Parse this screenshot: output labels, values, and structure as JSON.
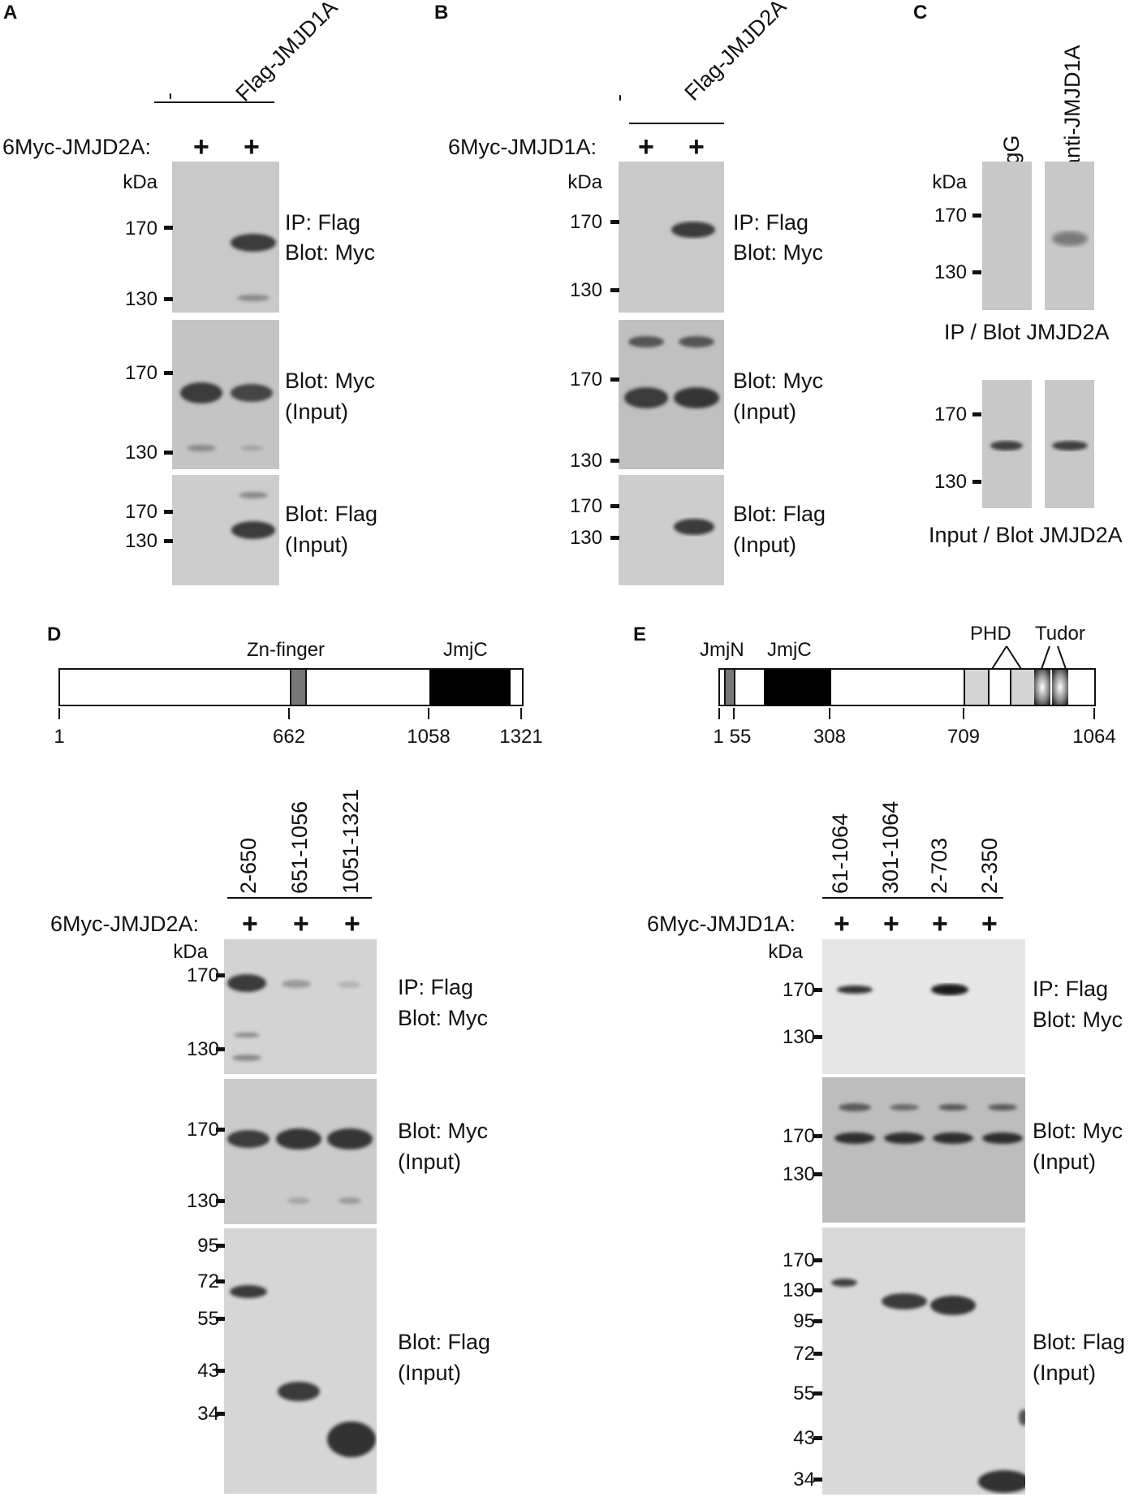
{
  "panels": {
    "A": {
      "label": "A",
      "lanes": [
        "-",
        "Flag-JMJD1A"
      ],
      "construct": "6Myc-JMJD2A:",
      "plus": [
        "+",
        "+"
      ],
      "kda": "kDa",
      "blots": [
        {
          "label1": "IP: Flag",
          "label2": "Blot: Myc",
          "mw": [
            "170",
            "130"
          ]
        },
        {
          "label1": "Blot: Myc",
          "label2": "(Input)",
          "mw": [
            "170",
            "130"
          ]
        },
        {
          "label1": "Blot: Flag",
          "label2": "(Input)",
          "mw": [
            "170",
            "130"
          ]
        }
      ]
    },
    "B": {
      "label": "B",
      "lanes": [
        "-",
        "Flag-JMJD2A"
      ],
      "construct": "6Myc-JMJD1A:",
      "plus": [
        "+",
        "+"
      ],
      "kda": "kDa",
      "blots": [
        {
          "label1": "IP: Flag",
          "label2": "Blot: Myc",
          "mw": [
            "170",
            "130"
          ]
        },
        {
          "label1": "Blot: Myc",
          "label2": "(Input)",
          "mw": [
            "170",
            "130"
          ]
        },
        {
          "label1": "Blot: Flag",
          "label2": "(Input)",
          "mw": [
            "170",
            "130"
          ]
        }
      ]
    },
    "C": {
      "label": "C",
      "lanes": [
        "IgG",
        "anti-JMJD1A"
      ],
      "kda": "kDa",
      "blots": [
        {
          "caption": "IP / Blot JMJD2A",
          "mw": [
            "170",
            "130"
          ]
        },
        {
          "caption": "Input / Blot JMJD2A",
          "mw": [
            "170",
            "130"
          ]
        }
      ]
    },
    "D": {
      "label": "D",
      "domains": [
        "Zn-finger",
        "JmjC"
      ],
      "positions": [
        "1",
        "662",
        "1058",
        "1321"
      ],
      "lanes": [
        "2-650",
        "651-1056",
        "1051-1321"
      ],
      "construct": "6Myc-JMJD2A:",
      "plus": [
        "+",
        "+",
        "+"
      ],
      "kda": "kDa",
      "blots": [
        {
          "label1": "IP: Flag",
          "label2": "Blot: Myc",
          "mw": [
            "170",
            "130"
          ]
        },
        {
          "label1": "Blot: Myc",
          "label2": "(Input)",
          "mw": [
            "170",
            "130"
          ]
        },
        {
          "label1": "Blot: Flag",
          "label2": "(Input)",
          "mw": [
            "95",
            "72",
            "55",
            "43",
            "34"
          ]
        }
      ]
    },
    "E": {
      "label": "E",
      "domains": [
        "JmjN",
        "JmjC",
        "PHD",
        "Tudor"
      ],
      "positions": [
        "1",
        "55",
        "308",
        "709",
        "1064"
      ],
      "lanes": [
        "61-1064",
        "301-1064",
        "2-703",
        "2-350"
      ],
      "construct": "6Myc-JMJD1A:",
      "plus": [
        "+",
        "+",
        "+",
        "+"
      ],
      "kda": "kDa",
      "blots": [
        {
          "label1": "IP: Flag",
          "label2": "Blot: Myc",
          "mw": [
            "170",
            "130"
          ]
        },
        {
          "label1": "Blot: Myc",
          "label2": "(Input)",
          "mw": [
            "170",
            "130"
          ]
        },
        {
          "label1": "Blot: Flag",
          "label2": "(Input)",
          "mw": [
            "170",
            "130",
            "95",
            "72",
            "55",
            "43",
            "34"
          ]
        }
      ]
    }
  },
  "colors": {
    "blot_bg": "#c9c9c9",
    "blot_bg_light": "#e6e6e6",
    "band": "#3a3a3a",
    "jmjc": "#000000",
    "zn_finger": "#777777",
    "phd": "#d4d4d4"
  }
}
